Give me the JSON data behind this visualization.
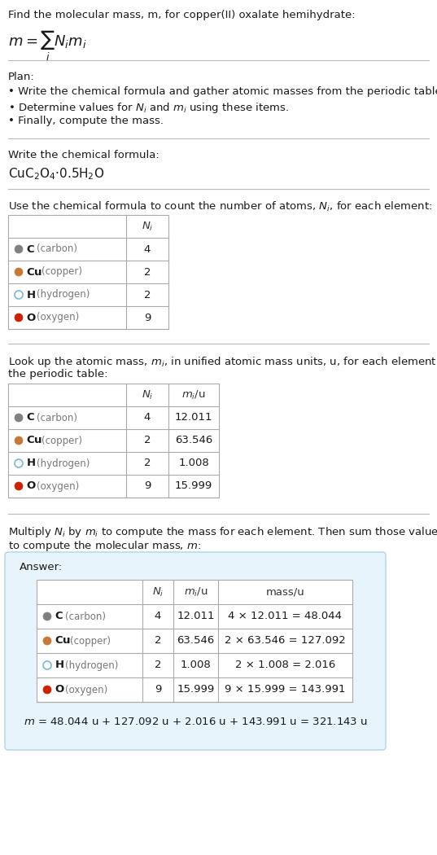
{
  "title_line1": "Find the molecular mass, m, for copper(II) oxalate hemihydrate:",
  "title_formula": "$m = \\sum_i N_i m_i$",
  "bg_color": "#ffffff",
  "answer_bg": "#e8f4fc",
  "answer_border": "#b0d4e8",
  "elements": [
    "C",
    "Cu",
    "H",
    "O"
  ],
  "element_names": [
    "carbon",
    "copper",
    "hydrogen",
    "oxygen"
  ],
  "dot_colors": [
    "#808080",
    "#c87832",
    "none",
    "#cc2200"
  ],
  "dot_edge_colors": [
    "#808080",
    "#c87832",
    "#7ab8d4",
    "#cc2200"
  ],
  "Ni": [
    4,
    2,
    2,
    9
  ],
  "mi": [
    12.011,
    63.546,
    1.008,
    15.999
  ],
  "mass_exprs": [
    "4 × 12.011 = 48.044",
    "2 × 63.546 = 127.092",
    "2 × 1.008 = 2.016",
    "9 × 15.999 = 143.991"
  ],
  "plan_lines": [
    "Plan:",
    "• Write the chemical formula and gather atomic masses from the periodic table.",
    "• Determine values for $N_i$ and $m_i$ using these items.",
    "• Finally, compute the mass."
  ],
  "formula_label": "Write the chemical formula:",
  "chemical_formula": "CuC$_2$O$_4$·0.5H$_2$O",
  "count_label": "Use the chemical formula to count the number of atoms, $N_i$, for each element:",
  "lookup_label_line1": "Look up the atomic mass, $m_i$, in unified atomic mass units, u, for each element in",
  "lookup_label_line2": "the periodic table:",
  "multiply_label_line1": "Multiply $N_i$ by $m_i$ to compute the mass for each element. Then sum those values",
  "multiply_label_line2": "to compute the molecular mass, $m$:",
  "final_eq": "$m$ = 48.044 u + 127.092 u + 2.016 u + 143.991 u = 321.143 u",
  "text_color": "#1a1a1a",
  "divider_color": "#bbbbbb"
}
